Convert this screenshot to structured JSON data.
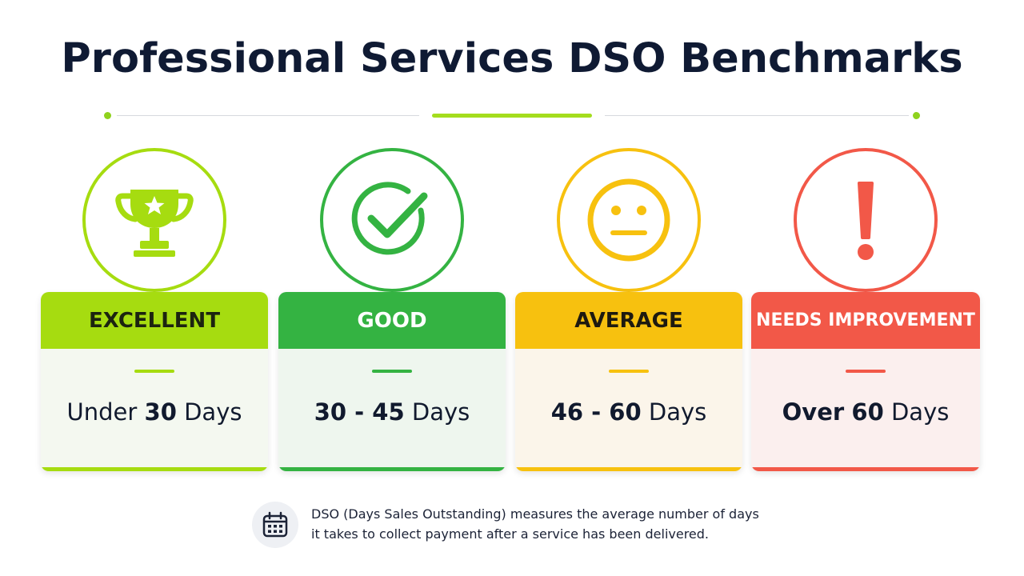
{
  "title": "Professional Services DSO Benchmarks",
  "colors": {
    "excellent": "#a6dc10",
    "good": "#34b342",
    "average": "#f7c10f",
    "needs_improvement": "#f25848",
    "divider_accent": "#a4dd1e"
  },
  "cards": [
    {
      "label": "EXCELLENT",
      "icon": "trophy-icon",
      "value_prefix": "Under",
      "value_number": "30",
      "value_unit": "Days"
    },
    {
      "label": "GOOD",
      "icon": "checkmark-icon",
      "value_prefix": "",
      "value_number": "30 - 45",
      "value_unit": "Days"
    },
    {
      "label": "AVERAGE",
      "icon": "neutral-face-icon",
      "value_prefix": "",
      "value_number": "46 - 60",
      "value_unit": "Days"
    },
    {
      "label": "NEEDS IMPROVEMENT",
      "icon": "exclamation-icon",
      "value_prefix": "Over",
      "value_number": "60",
      "value_unit": "Days"
    }
  ],
  "footnote": {
    "icon": "calendar-icon",
    "line1": "DSO (Days Sales Outstanding) measures the average number of days",
    "line2": "it takes to collect payment after a service has been delivered."
  }
}
